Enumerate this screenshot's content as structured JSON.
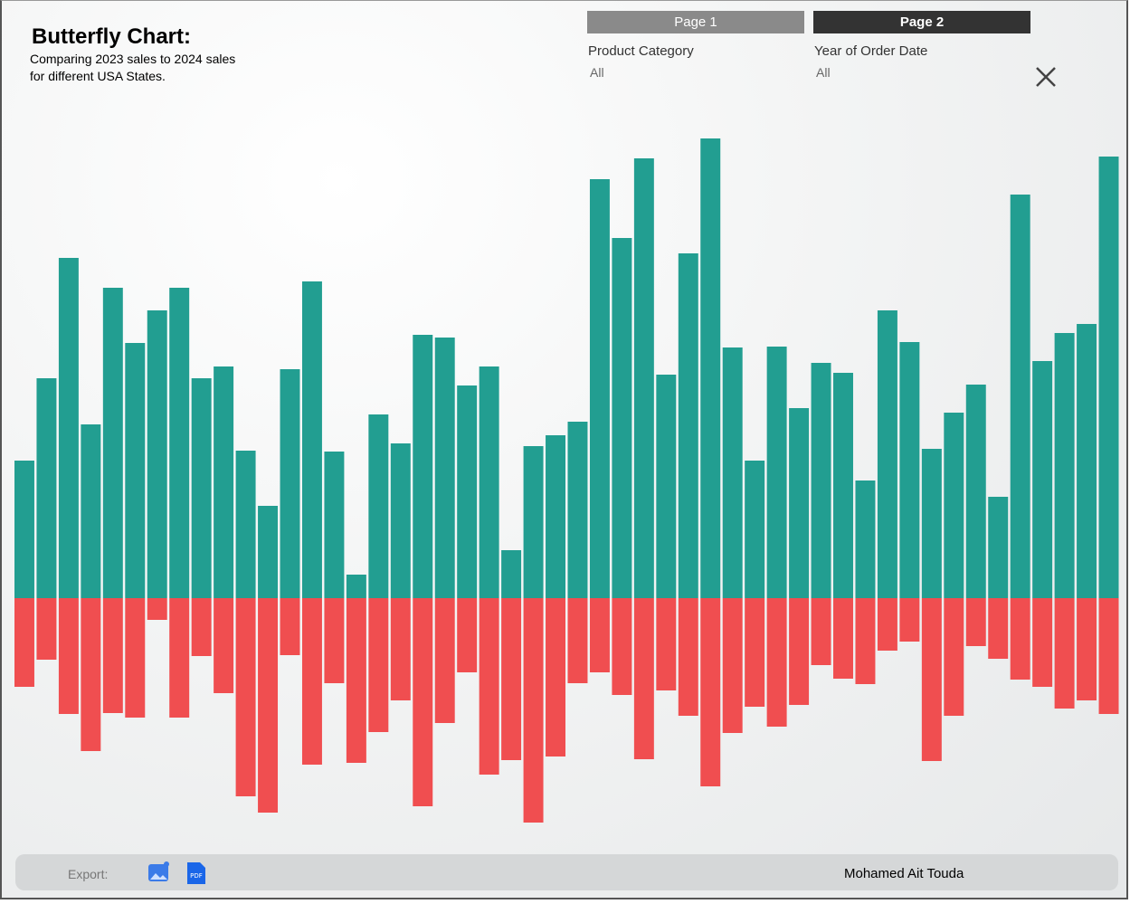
{
  "header": {
    "title": "Butterfly Chart:",
    "subtitle_lines": [
      "Comparing 2023 sales to 2024 sales",
      "for different USA States."
    ]
  },
  "tabs": [
    "Page 1",
    "Page 2"
  ],
  "filters": [
    {
      "label": "Product Category",
      "value": "All"
    },
    {
      "label": "Year of Order Date",
      "value": "All"
    }
  ],
  "footer": {
    "export": "Export:",
    "author": "Mohamed Ait Touda"
  },
  "chart_data": {
    "type": "butterfly",
    "ylim": [
      -260,
      540
    ],
    "series": [
      {
        "color": "#229e91",
        "values": [
          152,
          243,
          376,
          192,
          343,
          282,
          318,
          343,
          243,
          256,
          163,
          102,
          253,
          350,
          162,
          26,
          203,
          171,
          291,
          288,
          235,
          256,
          53,
          168,
          180,
          195,
          463,
          398,
          486,
          247,
          381,
          508,
          277,
          152,
          278,
          210,
          260,
          249,
          130,
          318,
          283,
          165,
          205,
          236,
          112,
          446,
          262,
          293,
          303,
          488
        ]
      },
      {
        "color": "#f04e50",
        "values": [
          98,
          68,
          128,
          169,
          127,
          132,
          24,
          132,
          64,
          105,
          219,
          237,
          63,
          184,
          94,
          182,
          148,
          113,
          230,
          138,
          82,
          195,
          179,
          248,
          175,
          94,
          82,
          107,
          178,
          102,
          130,
          208,
          149,
          120,
          142,
          118,
          74,
          89,
          95,
          58,
          48,
          180,
          130,
          53,
          67,
          90,
          98,
          122,
          113,
          128
        ]
      }
    ]
  }
}
